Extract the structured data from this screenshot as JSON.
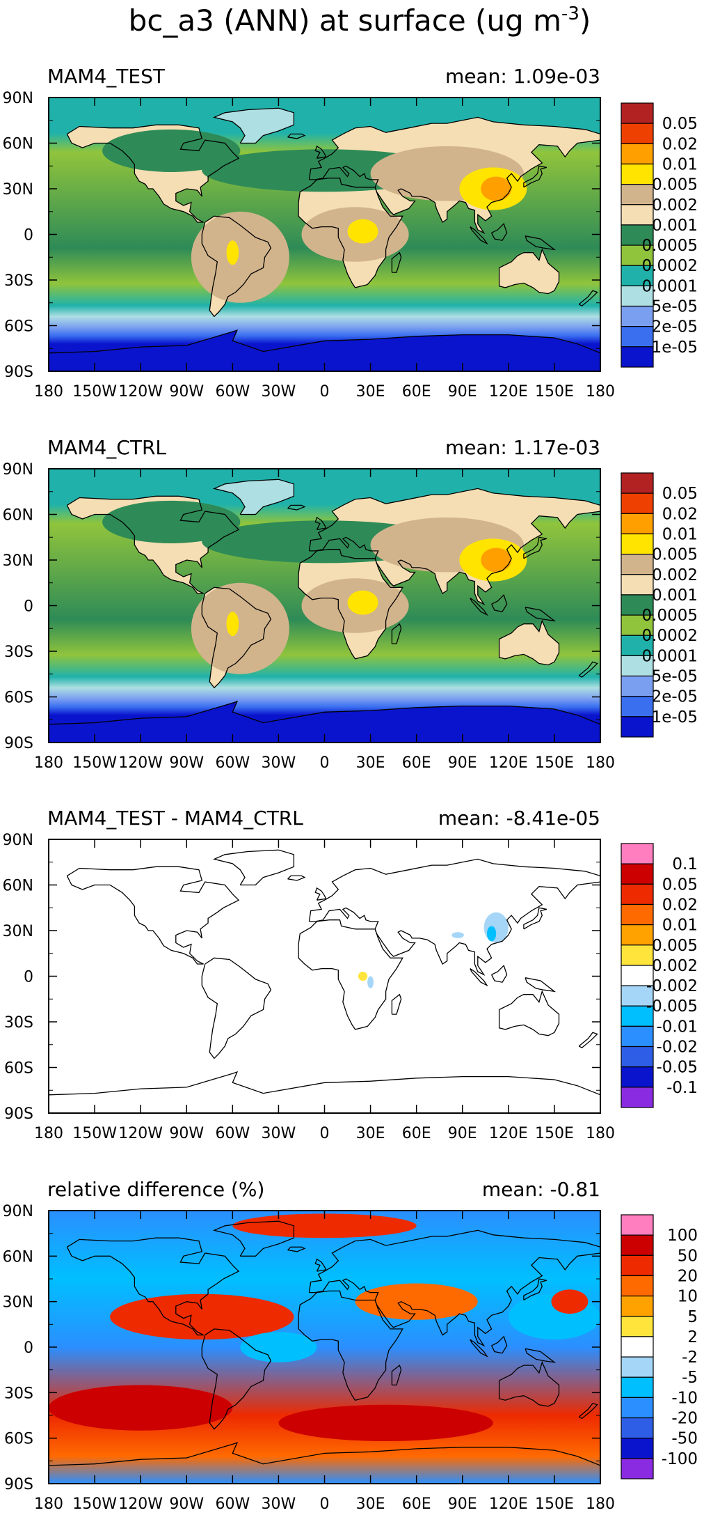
{
  "figure": {
    "title_main": "bc_a3 (ANN) at surface (ug m",
    "title_exp": "-3",
    "title_close": ")"
  },
  "axes": {
    "lat_labels": [
      "90N",
      "60N",
      "30N",
      "0",
      "30S",
      "60S",
      "90S"
    ],
    "lon_labels": [
      "180",
      "150W",
      "120W",
      "90W",
      "60W",
      "30W",
      "0",
      "30E",
      "60E",
      "90E",
      "120E",
      "150E",
      "180"
    ]
  },
  "chart_data": [
    {
      "type": "heatmap",
      "title": "MAM4_TEST",
      "mean_label": "mean: 1.09e-03",
      "mean": 0.00109,
      "map": "model",
      "xlim": [
        -180,
        180
      ],
      "ylim": [
        -90,
        90
      ],
      "colorbar": {
        "labels": [
          "0.05",
          "0.02",
          "0.01",
          "0.005",
          "0.002",
          "0.001",
          "0.0005",
          "0.0002",
          "0.0001",
          "5e-05",
          "2e-05",
          "1e-05"
        ],
        "colors": [
          "#b22222",
          "#ee4000",
          "#ff9f00",
          "#ffe400",
          "#d2b48c",
          "#f5deb3",
          "#2e8b57",
          "#90c43c",
          "#20b2aa",
          "#aedfe3",
          "#7b9ff0",
          "#3a6ff0",
          "#0a14cd"
        ]
      }
    },
    {
      "type": "heatmap",
      "title": "MAM4_CTRL",
      "mean_label": "mean: 1.17e-03",
      "mean": 0.00117,
      "map": "model",
      "xlim": [
        -180,
        180
      ],
      "ylim": [
        -90,
        90
      ],
      "colorbar": {
        "labels": [
          "0.05",
          "0.02",
          "0.01",
          "0.005",
          "0.002",
          "0.001",
          "0.0005",
          "0.0002",
          "0.0001",
          "5e-05",
          "2e-05",
          "1e-05"
        ],
        "colors": [
          "#b22222",
          "#ee4000",
          "#ff9f00",
          "#ffe400",
          "#d2b48c",
          "#f5deb3",
          "#2e8b57",
          "#90c43c",
          "#20b2aa",
          "#aedfe3",
          "#7b9ff0",
          "#3a6ff0",
          "#0a14cd"
        ]
      }
    },
    {
      "type": "heatmap",
      "title": "MAM4_TEST - MAM4_CTRL",
      "mean_label": "mean: -8.41e-05",
      "mean": -8.41e-05,
      "map": "diff",
      "xlim": [
        -180,
        180
      ],
      "ylim": [
        -90,
        90
      ],
      "colorbar": {
        "labels": [
          "0.1",
          "0.05",
          "0.02",
          "0.01",
          "0.005",
          "0.002",
          "-0.002",
          "-0.005",
          "-0.01",
          "-0.02",
          "-0.05",
          "-0.1"
        ],
        "colors": [
          "#ff7ebf",
          "#cc0000",
          "#ee2a00",
          "#ff6a00",
          "#ffa200",
          "#ffe43c",
          "#ffffff",
          "#a6d6f7",
          "#00bfff",
          "#2b8fff",
          "#2e5ee6",
          "#0a14cd",
          "#8a2be2"
        ]
      }
    },
    {
      "type": "heatmap",
      "title": "relative difference (%)",
      "mean_label": "mean: -0.81",
      "mean": -0.81,
      "map": "reldiff",
      "xlim": [
        -180,
        180
      ],
      "ylim": [
        -90,
        90
      ],
      "colorbar": {
        "labels": [
          "100",
          "50",
          "20",
          "10",
          "5",
          "2",
          "-2",
          "-5",
          "-10",
          "-20",
          "-50",
          "-100"
        ],
        "colors": [
          "#ff7ebf",
          "#cc0000",
          "#ee2a00",
          "#ff6a00",
          "#ffa200",
          "#ffe43c",
          "#ffffff",
          "#a6d6f7",
          "#00bfff",
          "#2b8fff",
          "#2e5ee6",
          "#0a14cd",
          "#8a2be2"
        ]
      }
    }
  ]
}
